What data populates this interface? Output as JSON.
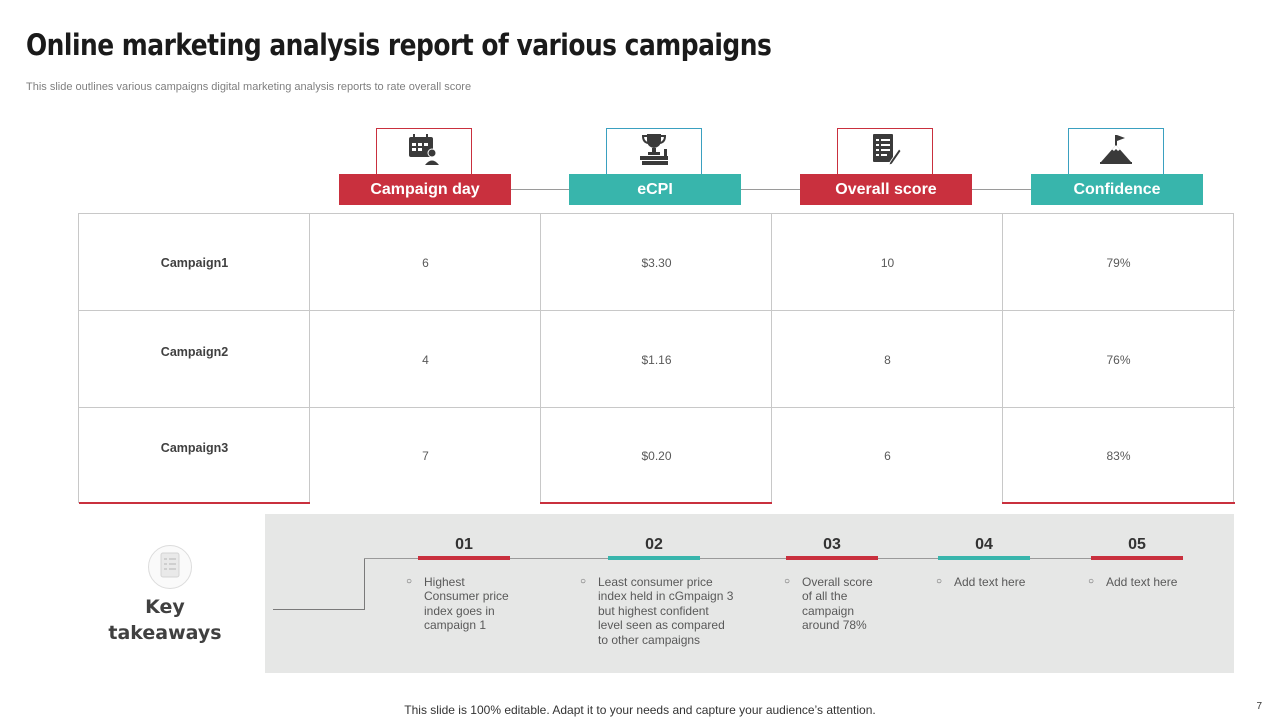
{
  "slide": {
    "title": "Online marketing analysis report of various campaigns",
    "subtitle": "This slide outlines various campaigns digital marketing analysis reports to rate overall score",
    "footer": "This slide is 100% editable. Adapt it to your needs and capture your audience’s attention.",
    "page_number": "7"
  },
  "columns": [
    {
      "label": "Campaign day",
      "icon": "calendar-person-icon",
      "color": "#c9303e"
    },
    {
      "label": "eCPI",
      "icon": "trophy-books-icon",
      "color": "#38b5ac"
    },
    {
      "label": "Overall score",
      "icon": "checklist-pen-icon",
      "color": "#c9303e"
    },
    {
      "label": "Confidence",
      "icon": "mountain-flag-icon",
      "color": "#38b5ac"
    }
  ],
  "rows": [
    {
      "name": "Campaign1",
      "values": [
        "6",
        "$3.30",
        "10",
        "79%"
      ]
    },
    {
      "name": "Campaign2",
      "values": [
        "4",
        "$1.16",
        "8",
        "76%"
      ]
    },
    {
      "name": "Campaign3",
      "values": [
        "7",
        "$0.20",
        "6",
        "83%"
      ]
    }
  ],
  "takeaways": {
    "label_line1": "Key",
    "label_line2": "takeaways",
    "icon": "document-list-icon",
    "items": [
      {
        "number": "01",
        "text": "Highest Consumer price index goes in campaign 1",
        "color": "#c9303e"
      },
      {
        "number": "02",
        "text": "Least consumer price index held in cGmpaign 3 but highest confident level seen as compared to other campaigns",
        "color": "#38b5ac"
      },
      {
        "number": "03",
        "text": "Overall score of all the campaign around 78%",
        "color": "#c9303e"
      },
      {
        "number": "04",
        "text": "Add text here",
        "color": "#38b5ac"
      },
      {
        "number": "05",
        "text": "Add text here",
        "color": "#c9303e"
      }
    ]
  }
}
